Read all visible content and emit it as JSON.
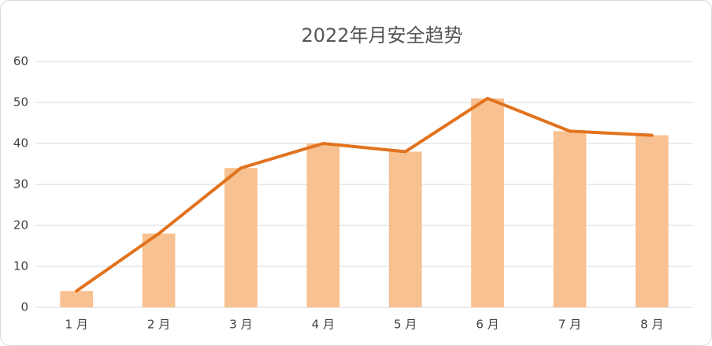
{
  "chart_data": {
    "type": "combo",
    "title": "2022年月安全趋势",
    "categories": [
      "1 月",
      "2 月",
      "3 月",
      "4 月",
      "5 月",
      "6 月",
      "7 月",
      "8 月"
    ],
    "series": [
      {
        "type": "bar",
        "color": "#f8c191",
        "values": [
          4,
          18,
          34,
          40,
          38,
          51,
          43,
          42
        ]
      },
      {
        "type": "line",
        "color": "#e1731f",
        "values": [
          4,
          18,
          34,
          40,
          38,
          51,
          43,
          42
        ]
      }
    ],
    "ylim": [
      0,
      60
    ],
    "yticks": [
      0,
      10,
      20,
      30,
      40,
      50,
      60
    ],
    "grid": true
  }
}
